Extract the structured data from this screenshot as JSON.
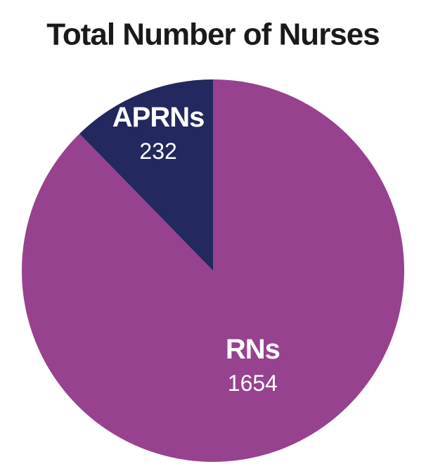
{
  "chart_data": {
    "type": "pie",
    "title": "Total Number of Nurses",
    "categories": [
      "RNs",
      "APRNs"
    ],
    "values": [
      1654,
      232
    ],
    "colors": [
      "#96428f",
      "#23285e"
    ]
  }
}
